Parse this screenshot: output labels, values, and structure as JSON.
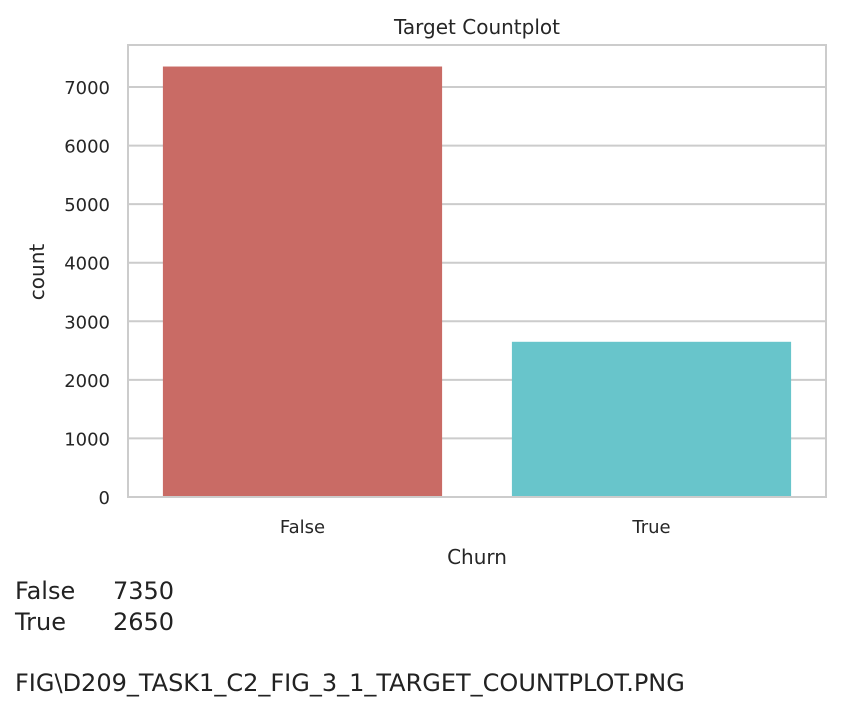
{
  "chart_data": {
    "type": "bar",
    "title": "Target Countplot",
    "xlabel": "Churn",
    "ylabel": "count",
    "categories": [
      "False",
      "True"
    ],
    "values": [
      7350,
      2650
    ],
    "colors": [
      "#c96b65",
      "#68c5cb"
    ],
    "ylim": [
      0,
      7717.5
    ],
    "yticks": [
      0,
      1000,
      2000,
      3000,
      4000,
      5000,
      6000,
      7000
    ],
    "grid": true
  },
  "output": {
    "rows": [
      {
        "key": "False",
        "value": "7350"
      },
      {
        "key": "True",
        "value": "2650"
      }
    ]
  },
  "caption": "FIG\\D209_TASK1_C2_FIG_3_1_TARGET_COUNTPLOT.PNG"
}
